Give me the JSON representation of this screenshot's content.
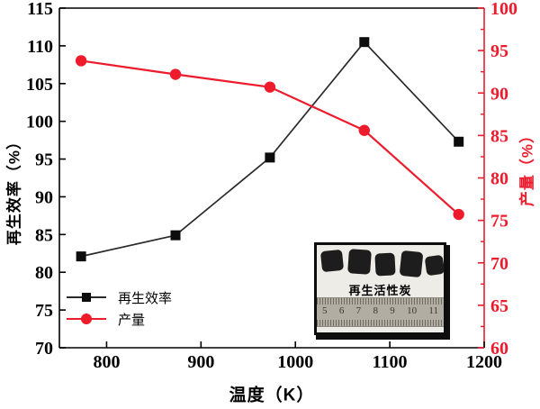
{
  "colors": {
    "accent_red": "#ed1b2c",
    "series_black": "#1a1a1a",
    "frame_black": "#000000"
  },
  "chart_data": {
    "type": "line",
    "title": "",
    "xlabel": "温度（K）",
    "ylabel_left": "再生效率（%）",
    "ylabel_right": "产量（%）",
    "xlim": [
      750,
      1200
    ],
    "ylim_left": [
      70,
      115
    ],
    "ylim_right": [
      60,
      100
    ],
    "grid": false,
    "legend_position": "lower-left",
    "x_ticks": [
      800,
      900,
      1000,
      1100,
      1200
    ],
    "left_ticks": [
      70,
      75,
      80,
      85,
      90,
      95,
      100,
      105,
      110,
      115
    ],
    "right_ticks": [
      60,
      65,
      70,
      75,
      80,
      85,
      90,
      95,
      100
    ],
    "right_minor_ticks": [
      62.5,
      67.5,
      72.5,
      77.5,
      82.5,
      87.5,
      92.5,
      97.5
    ],
    "x": [
      773,
      873,
      973,
      1073,
      1173
    ],
    "series": [
      {
        "name": "再生效率",
        "axis": "left",
        "marker": "square",
        "color": "#0d0d0d",
        "line_color": "#2a2a2a",
        "values": [
          82.1,
          84.9,
          95.2,
          110.5,
          97.3
        ]
      },
      {
        "name": "产量",
        "axis": "right",
        "marker": "circle",
        "color": "#ed1b2c",
        "line_color": "#ed1b2c",
        "values": [
          93.8,
          92.2,
          90.7,
          85.6,
          75.7
        ]
      }
    ]
  },
  "inset": {
    "caption": "再生活性炭",
    "ruler_numbers": [
      "5",
      "6",
      "7",
      "8",
      "9",
      "10",
      "11"
    ],
    "chunk_count": 5
  }
}
